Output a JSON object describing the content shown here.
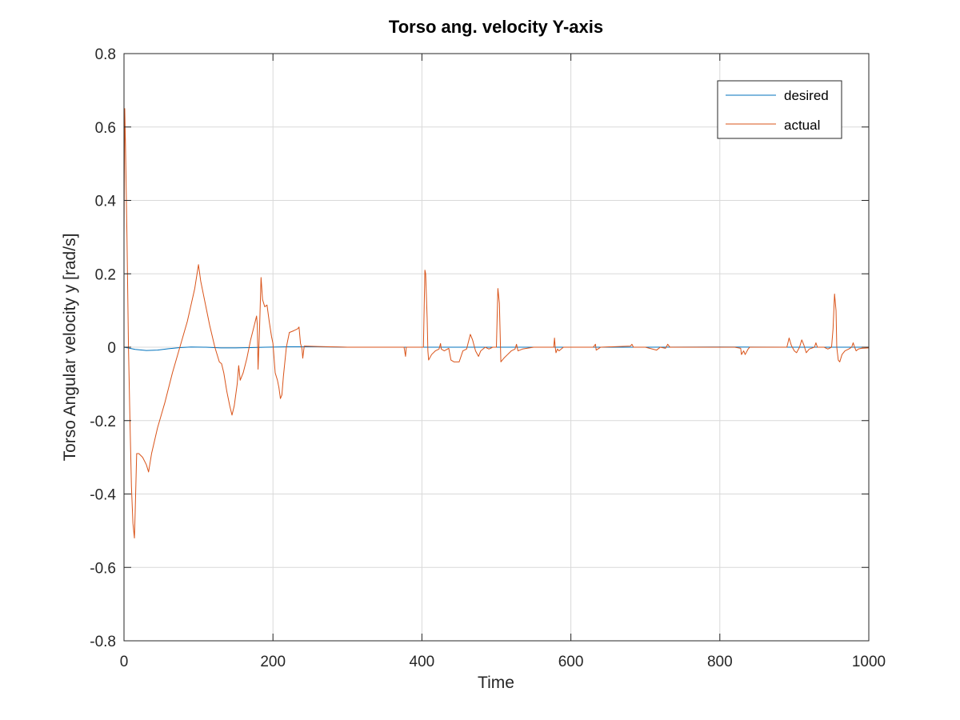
{
  "chart_data": {
    "type": "line",
    "title": "Torso ang. velocity Y-axis",
    "xlabel": "Time",
    "ylabel": "Torso Angular velocity y [rad/s]",
    "xlim": [
      0,
      1000
    ],
    "ylim": [
      -0.8,
      0.8
    ],
    "xticks": [
      0,
      200,
      400,
      600,
      800,
      1000
    ],
    "xtick_labels": [
      "0",
      "200",
      "400",
      "600",
      "800",
      "1000"
    ],
    "yticks": [
      -0.8,
      -0.6,
      -0.4,
      -0.2,
      0,
      0.2,
      0.4,
      0.6,
      0.8
    ],
    "ytick_labels": [
      "-0.8",
      "-0.6",
      "-0.4",
      "-0.2",
      "0",
      "0.2",
      "0.4",
      "0.6",
      "0.8"
    ],
    "grid": true,
    "legend_position": "top-right",
    "series": [
      {
        "name": "desired",
        "color": "#0072BD",
        "points": [
          [
            0,
            0
          ],
          [
            5,
            -0.002
          ],
          [
            15,
            -0.006
          ],
          [
            30,
            -0.009
          ],
          [
            45,
            -0.008
          ],
          [
            60,
            -0.004
          ],
          [
            75,
            -0.001
          ],
          [
            90,
            0.0005
          ],
          [
            110,
            0
          ],
          [
            130,
            -0.002
          ],
          [
            150,
            -0.002
          ],
          [
            170,
            -0.001
          ],
          [
            190,
            0
          ],
          [
            220,
            0.001
          ],
          [
            260,
            0.001
          ],
          [
            300,
            0
          ],
          [
            400,
            0
          ],
          [
            500,
            0
          ],
          [
            600,
            0
          ],
          [
            700,
            0
          ],
          [
            800,
            0.0005
          ],
          [
            900,
            0
          ],
          [
            1000,
            0
          ]
        ]
      },
      {
        "name": "actual",
        "color": "#D95319",
        "points": [
          [
            0,
            0.3
          ],
          [
            1,
            0.65
          ],
          [
            2,
            0.55
          ],
          [
            4,
            0.3
          ],
          [
            6,
            0
          ],
          [
            8,
            -0.2
          ],
          [
            10,
            -0.38
          ],
          [
            12,
            -0.48
          ],
          [
            14,
            -0.52
          ],
          [
            15,
            -0.45
          ],
          [
            17,
            -0.29
          ],
          [
            20,
            -0.29
          ],
          [
            25,
            -0.3
          ],
          [
            30,
            -0.32
          ],
          [
            33,
            -0.34
          ],
          [
            37,
            -0.29
          ],
          [
            45,
            -0.22
          ],
          [
            55,
            -0.15
          ],
          [
            65,
            -0.07
          ],
          [
            75,
            0
          ],
          [
            85,
            0.07
          ],
          [
            95,
            0.16
          ],
          [
            100,
            0.225
          ],
          [
            103,
            0.18
          ],
          [
            108,
            0.13
          ],
          [
            115,
            0.06
          ],
          [
            122,
            0
          ],
          [
            128,
            -0.04
          ],
          [
            131,
            -0.045
          ],
          [
            134,
            -0.07
          ],
          [
            138,
            -0.12
          ],
          [
            142,
            -0.16
          ],
          [
            145,
            -0.185
          ],
          [
            148,
            -0.16
          ],
          [
            152,
            -0.1
          ],
          [
            154,
            -0.05
          ],
          [
            156,
            -0.09
          ],
          [
            160,
            -0.07
          ],
          [
            165,
            -0.03
          ],
          [
            170,
            0.02
          ],
          [
            175,
            0.06
          ],
          [
            178,
            0.085
          ],
          [
            179,
            0.06
          ],
          [
            180,
            -0.06
          ],
          [
            182,
            0.05
          ],
          [
            184,
            0.19
          ],
          [
            186,
            0.13
          ],
          [
            189,
            0.11
          ],
          [
            192,
            0.115
          ],
          [
            195,
            0.07
          ],
          [
            198,
            0.03
          ],
          [
            200,
            0.01
          ],
          [
            203,
            -0.07
          ],
          [
            206,
            -0.09
          ],
          [
            208,
            -0.11
          ],
          [
            210,
            -0.14
          ],
          [
            212,
            -0.13
          ],
          [
            214,
            -0.08
          ],
          [
            218,
            0
          ],
          [
            222,
            0.04
          ],
          [
            228,
            0.045
          ],
          [
            233,
            0.05
          ],
          [
            235,
            0.055
          ],
          [
            237,
            0.01
          ],
          [
            239,
            -0.005
          ],
          [
            240,
            -0.03
          ],
          [
            242,
            0.003
          ],
          [
            260,
            0.002
          ],
          [
            300,
            0
          ],
          [
            330,
            0
          ],
          [
            376,
            0
          ],
          [
            378,
            -0.025
          ],
          [
            379,
            0
          ],
          [
            402,
            0
          ],
          [
            404,
            0.21
          ],
          [
            405,
            0.2
          ],
          [
            407,
            0.08
          ],
          [
            408,
            -0.01
          ],
          [
            409,
            -0.035
          ],
          [
            413,
            -0.02
          ],
          [
            418,
            -0.01
          ],
          [
            423,
            -0.005
          ],
          [
            425,
            0.01
          ],
          [
            426,
            -0.005
          ],
          [
            430,
            -0.01
          ],
          [
            436,
            -0.003
          ],
          [
            439,
            -0.035
          ],
          [
            443,
            -0.04
          ],
          [
            450,
            -0.04
          ],
          [
            455,
            -0.01
          ],
          [
            460,
            -0.005
          ],
          [
            465,
            0.035
          ],
          [
            468,
            0.02
          ],
          [
            472,
            -0.01
          ],
          [
            476,
            -0.025
          ],
          [
            479,
            -0.01
          ],
          [
            485,
            0
          ],
          [
            490,
            -0.005
          ],
          [
            495,
            0
          ],
          [
            500,
            0
          ],
          [
            502,
            0.16
          ],
          [
            504,
            0.12
          ],
          [
            506,
            -0.04
          ],
          [
            510,
            -0.03
          ],
          [
            515,
            -0.02
          ],
          [
            520,
            -0.01
          ],
          [
            525,
            -0.005
          ],
          [
            527,
            0.008
          ],
          [
            529,
            -0.01
          ],
          [
            535,
            -0.005
          ],
          [
            550,
            0
          ],
          [
            560,
            0
          ],
          [
            577,
            0
          ],
          [
            578,
            0.025
          ],
          [
            579,
            0
          ],
          [
            580,
            -0.015
          ],
          [
            582,
            -0.005
          ],
          [
            584,
            -0.01
          ],
          [
            590,
            0
          ],
          [
            600,
            0
          ],
          [
            630,
            0
          ],
          [
            633,
            0.008
          ],
          [
            634,
            -0.008
          ],
          [
            637,
            -0.004
          ],
          [
            640,
            0
          ],
          [
            680,
            0.003
          ],
          [
            682,
            0.008
          ],
          [
            684,
            0
          ],
          [
            700,
            0
          ],
          [
            715,
            -0.008
          ],
          [
            720,
            0
          ],
          [
            727,
            -0.003
          ],
          [
            730,
            0.008
          ],
          [
            733,
            0
          ],
          [
            740,
            0
          ],
          [
            800,
            0
          ],
          [
            820,
            0
          ],
          [
            828,
            -0.003
          ],
          [
            829,
            -0.02
          ],
          [
            832,
            -0.01
          ],
          [
            834,
            -0.02
          ],
          [
            838,
            -0.005
          ],
          [
            840,
            0
          ],
          [
            890,
            0
          ],
          [
            893,
            0.025
          ],
          [
            896,
            0.005
          ],
          [
            900,
            -0.01
          ],
          [
            903,
            -0.015
          ],
          [
            907,
            0
          ],
          [
            910,
            0.02
          ],
          [
            913,
            0.005
          ],
          [
            916,
            -0.015
          ],
          [
            920,
            -0.005
          ],
          [
            927,
            0
          ],
          [
            929,
            0.012
          ],
          [
            931,
            0
          ],
          [
            935,
            0
          ],
          [
            940,
            0
          ],
          [
            945,
            -0.005
          ],
          [
            950,
            0
          ],
          [
            952,
            0.05
          ],
          [
            954,
            0.145
          ],
          [
            956,
            0.1
          ],
          [
            957,
            0
          ],
          [
            959,
            -0.035
          ],
          [
            961,
            -0.04
          ],
          [
            964,
            -0.02
          ],
          [
            968,
            -0.01
          ],
          [
            973,
            -0.005
          ],
          [
            977,
            0
          ],
          [
            979,
            0.012
          ],
          [
            981,
            0
          ],
          [
            983,
            -0.01
          ],
          [
            986,
            -0.005
          ],
          [
            990,
            -0.003
          ],
          [
            1000,
            -0.002
          ]
        ]
      }
    ]
  }
}
